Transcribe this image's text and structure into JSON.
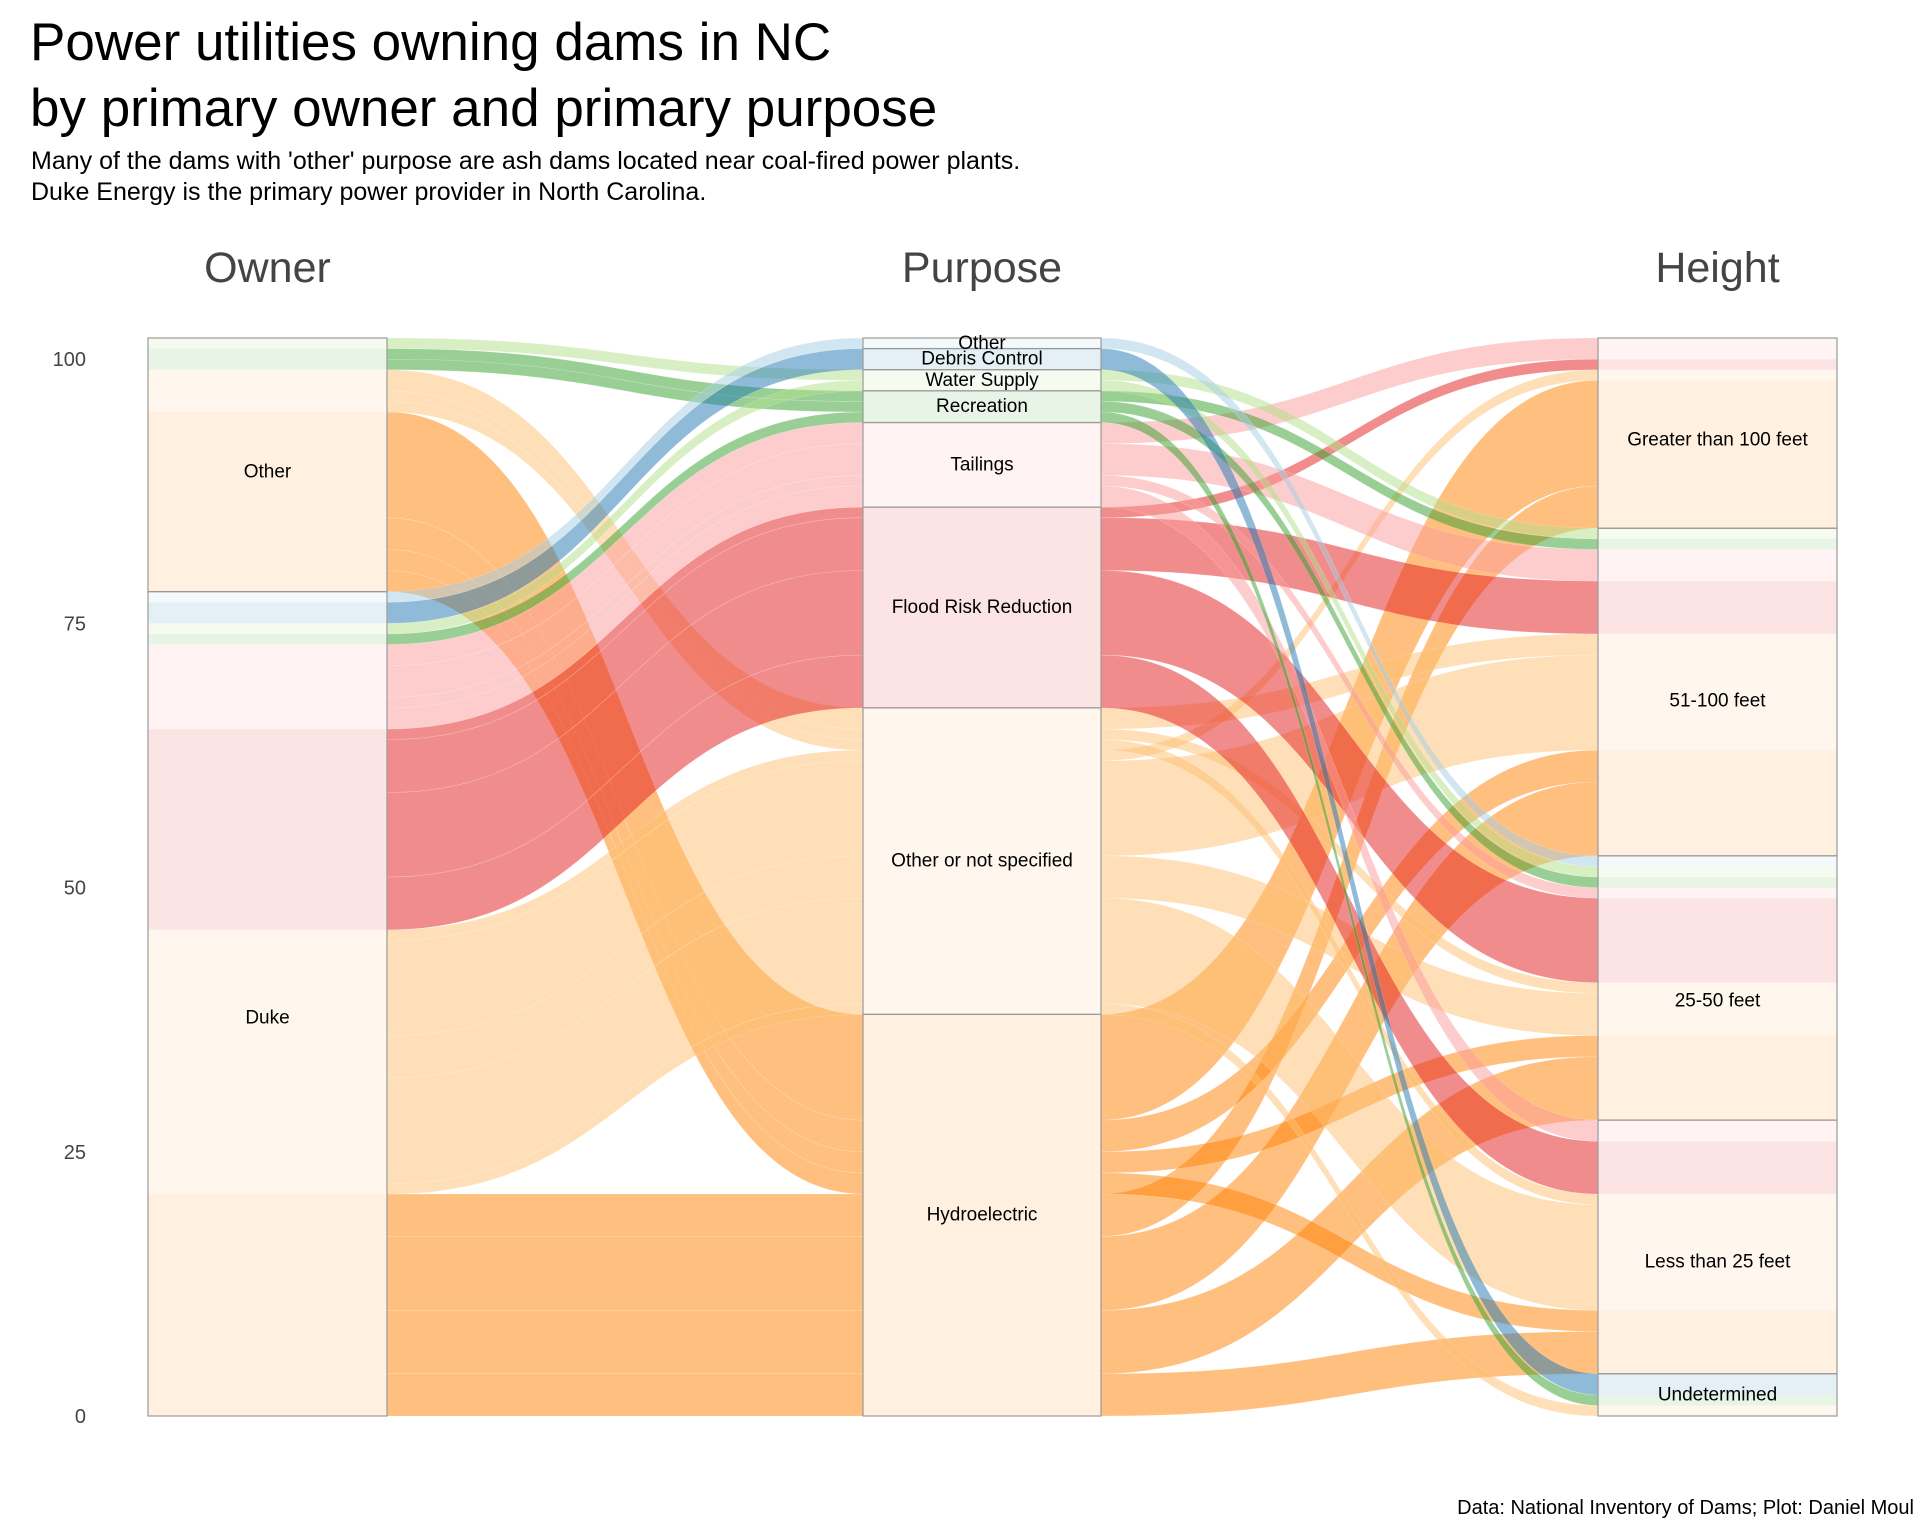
{
  "title_line1": "Power utilities owning dams in NC",
  "title_line2": "by primary owner and primary purpose",
  "subtitle_line1": "Many of the dams with 'other' purpose are ash dams located near coal-fired power plants.",
  "subtitle_line2": "Duke Energy is the primary power provider in North Carolina.",
  "caption": "Data: National Inventory of Dams; Plot: Daniel Moul",
  "chart_data": {
    "type": "alluvial",
    "axes": [
      "Owner",
      "Purpose",
      "Height"
    ],
    "ylim": [
      0,
      102
    ],
    "y_ticks": [
      0,
      25,
      50,
      75,
      100
    ],
    "grid": false,
    "flow_opacity": 0.5,
    "strata": {
      "Owner": [
        "Duke",
        "Other"
      ],
      "Purpose": [
        "Hydroelectric",
        "Other or not specified",
        "Flood Risk Reduction",
        "Tailings",
        "Recreation",
        "Water Supply",
        "Debris Control",
        "Other"
      ],
      "Height": [
        "Undetermined",
        "Less than 25 feet",
        "25-50 feet",
        "51-100 feet",
        "Greater than 100 feet"
      ]
    },
    "purpose_colors": {
      "Hydroelectric": "#ff7f00",
      "Other or not specified": "#fdbf6f",
      "Flood Risk Reduction": "#e31a1c",
      "Tailings": "#fb9a99",
      "Recreation": "#33a02c",
      "Water Supply": "#b2df8a",
      "Debris Control": "#1f78b4",
      "Other": "#a6cee3"
    },
    "flows": [
      {
        "owner": "Duke",
        "purpose": "Hydroelectric",
        "height": "Less than 25 feet",
        "count": 4
      },
      {
        "owner": "Duke",
        "purpose": "Hydroelectric",
        "height": "25-50 feet",
        "count": 6
      },
      {
        "owner": "Duke",
        "purpose": "Hydroelectric",
        "height": "51-100 feet",
        "count": 7
      },
      {
        "owner": "Duke",
        "purpose": "Hydroelectric",
        "height": "Greater than 100 feet",
        "count": 4
      },
      {
        "owner": "Other",
        "purpose": "Hydroelectric",
        "height": "Less than 25 feet",
        "count": 2
      },
      {
        "owner": "Other",
        "purpose": "Hydroelectric",
        "height": "25-50 feet",
        "count": 2
      },
      {
        "owner": "Other",
        "purpose": "Hydroelectric",
        "height": "51-100 feet",
        "count": 3
      },
      {
        "owner": "Other",
        "purpose": "Hydroelectric",
        "height": "Greater than 100 feet",
        "count": 10
      },
      {
        "owner": "Duke",
        "purpose": "Other or not specified",
        "height": "Undetermined",
        "count": 1
      },
      {
        "owner": "Duke",
        "purpose": "Other or not specified",
        "height": "Less than 25 feet",
        "count": 10
      },
      {
        "owner": "Duke",
        "purpose": "Other or not specified",
        "height": "25-50 feet",
        "count": 4
      },
      {
        "owner": "Duke",
        "purpose": "Other or not specified",
        "height": "51-100 feet",
        "count": 9
      },
      {
        "owner": "Duke",
        "purpose": "Other or not specified",
        "height": "Greater than 100 feet",
        "count": 1
      },
      {
        "owner": "Other",
        "purpose": "Other or not specified",
        "height": "Less than 25 feet",
        "count": 1
      },
      {
        "owner": "Other",
        "purpose": "Other or not specified",
        "height": "25-50 feet",
        "count": 1
      },
      {
        "owner": "Other",
        "purpose": "Other or not specified",
        "height": "51-100 feet",
        "count": 2
      },
      {
        "owner": "Duke",
        "purpose": "Flood Risk Reduction",
        "height": "Less than 25 feet",
        "count": 5
      },
      {
        "owner": "Duke",
        "purpose": "Flood Risk Reduction",
        "height": "25-50 feet",
        "count": 8
      },
      {
        "owner": "Duke",
        "purpose": "Flood Risk Reduction",
        "height": "51-100 feet",
        "count": 5
      },
      {
        "owner": "Duke",
        "purpose": "Flood Risk Reduction",
        "height": "Greater than 100 feet",
        "count": 1
      },
      {
        "owner": "Duke",
        "purpose": "Tailings",
        "height": "Less than 25 feet",
        "count": 2
      },
      {
        "owner": "Duke",
        "purpose": "Tailings",
        "height": "25-50 feet",
        "count": 1
      },
      {
        "owner": "Duke",
        "purpose": "Tailings",
        "height": "51-100 feet",
        "count": 3
      },
      {
        "owner": "Duke",
        "purpose": "Tailings",
        "height": "Greater than 100 feet",
        "count": 2
      },
      {
        "owner": "Duke",
        "purpose": "Recreation",
        "height": "Undetermined",
        "count": 1
      },
      {
        "owner": "Other",
        "purpose": "Recreation",
        "height": "25-50 feet",
        "count": 1
      },
      {
        "owner": "Other",
        "purpose": "Recreation",
        "height": "51-100 feet",
        "count": 1
      },
      {
        "owner": "Duke",
        "purpose": "Water Supply",
        "height": "25-50 feet",
        "count": 1
      },
      {
        "owner": "Other",
        "purpose": "Water Supply",
        "height": "51-100 feet",
        "count": 1
      },
      {
        "owner": "Duke",
        "purpose": "Debris Control",
        "height": "Undetermined",
        "count": 2
      },
      {
        "owner": "Duke",
        "purpose": "Other",
        "height": "25-50 feet",
        "count": 1
      }
    ]
  }
}
